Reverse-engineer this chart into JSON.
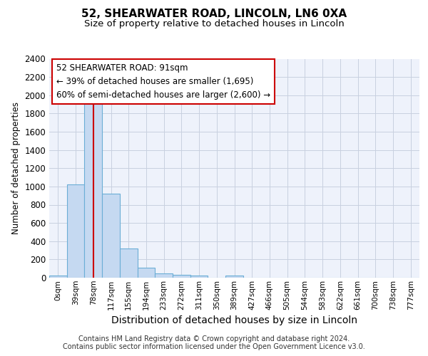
{
  "title1": "52, SHEARWATER ROAD, LINCOLN, LN6 0XA",
  "title2": "Size of property relative to detached houses in Lincoln",
  "xlabel": "Distribution of detached houses by size in Lincoln",
  "ylabel": "Number of detached properties",
  "bar_color": "#c5d9f1",
  "bar_edge_color": "#6baed6",
  "tick_labels": [
    "0sqm",
    "39sqm",
    "78sqm",
    "117sqm",
    "155sqm",
    "194sqm",
    "233sqm",
    "272sqm",
    "311sqm",
    "350sqm",
    "389sqm",
    "427sqm",
    "466sqm",
    "505sqm",
    "544sqm",
    "583sqm",
    "622sqm",
    "661sqm",
    "700sqm",
    "738sqm",
    "777sqm"
  ],
  "bar_values": [
    20,
    1020,
    1920,
    920,
    320,
    110,
    50,
    30,
    20,
    0,
    20,
    0,
    0,
    0,
    0,
    0,
    0,
    0,
    0,
    0,
    0
  ],
  "ylim": [
    0,
    2400
  ],
  "yticks": [
    0,
    200,
    400,
    600,
    800,
    1000,
    1200,
    1400,
    1600,
    1800,
    2000,
    2200,
    2400
  ],
  "vline_x": 2.0,
  "annotation_text": "52 SHEARWATER ROAD: 91sqm\n← 39% of detached houses are smaller (1,695)\n60% of semi-detached houses are larger (2,600) →",
  "red_color": "#cc0000",
  "footer_text": "Contains HM Land Registry data © Crown copyright and database right 2024.\nContains public sector information licensed under the Open Government Licence v3.0.",
  "bg_color": "#eef2fb",
  "grid_color": "#c8d0e0",
  "title1_fontsize": 11,
  "title2_fontsize": 9.5,
  "ylabel_fontsize": 8.5,
  "xlabel_fontsize": 10,
  "ytick_fontsize": 8.5,
  "xtick_fontsize": 7.5,
  "annot_fontsize": 8.5,
  "footer_fontsize": 7
}
